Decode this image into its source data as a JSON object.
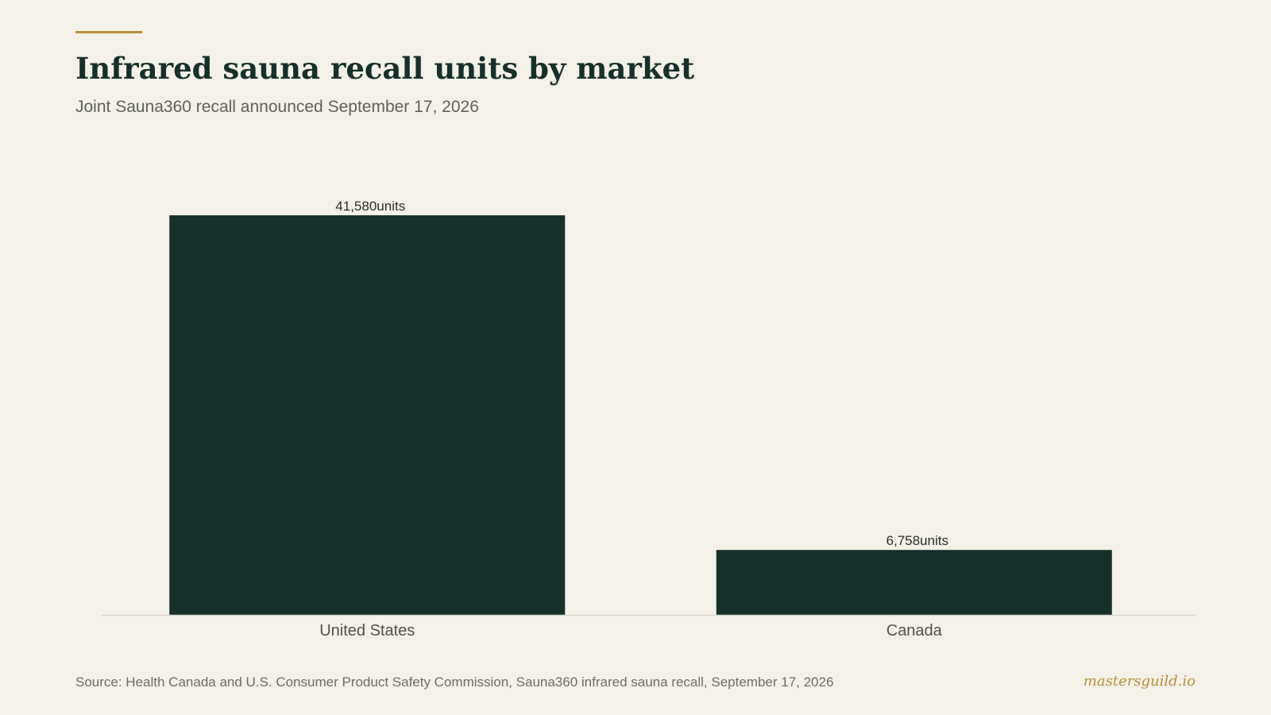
{
  "header": {
    "title": "Infrared sauna recall units by market",
    "subtitle": "Joint Sauna360 recall announced September 17, 2026"
  },
  "footer": {
    "source": "Source: Health Canada and U.S. Consumer Product Safety Commission, Sauna360 infrared sauna recall, September 17, 2026",
    "brand": "mastersguild.io"
  },
  "colors": {
    "background": "#f4f1e8",
    "bar": "#17302b",
    "accent": "#b8913a",
    "axis": "#d8d6cc"
  },
  "chart_data": {
    "type": "bar",
    "title": "Infrared sauna recall units by market",
    "subtitle": "Joint Sauna360 recall announced September 17, 2026",
    "categories": [
      "United States",
      "Canada"
    ],
    "values": [
      41580,
      6758
    ],
    "value_labels": [
      "41,580units",
      "6,758units"
    ],
    "xlabel": "",
    "ylabel": "",
    "ylim": [
      0,
      41580
    ],
    "grid": false,
    "legend": "none"
  }
}
